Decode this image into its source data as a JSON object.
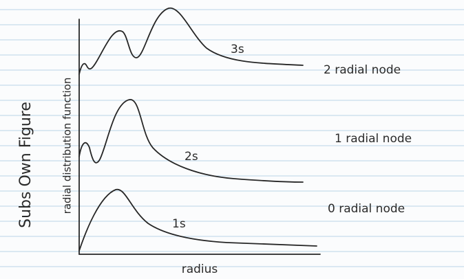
{
  "figure": {
    "side_note": "Subs Own Figure",
    "y_axis_label": "radial distribution function",
    "x_axis_label": "radius",
    "curves": [
      {
        "label": "3s",
        "note": "2 radial node"
      },
      {
        "label": "2s",
        "note": "1 radial node"
      },
      {
        "label": "1s",
        "note": "0 radial node"
      }
    ]
  }
}
